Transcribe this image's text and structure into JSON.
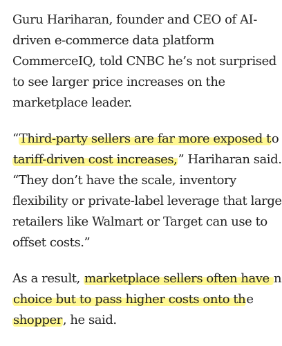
{
  "article": {
    "paragraph_1": {
      "lines": [
        "Guru Hariharan, founder and CEO of AI-",
        "driven e-commerce data platform",
        "CommerceIQ, told CNBC he’s not surprised",
        "to see larger price increases on the",
        "marketplace leader."
      ]
    },
    "paragraph_2": {
      "line_1": {
        "before": "“",
        "highlight": "Third-party sellers are far more exposed t",
        "after": "o"
      },
      "line_2": {
        "before": "",
        "highlight": "tariff-driven cost increases,",
        "after": "” Hariharan said."
      },
      "line_3": "“They don’t have the scale, inventory",
      "line_4": "flexibility or private-label leverage that large",
      "line_5": "retailers like Walmart or Target can use to",
      "line_6": "offset costs.”"
    },
    "paragraph_3": {
      "line_1": {
        "before": "As a result, ",
        "highlight": "marketplace sellers often have ",
        "after": "no"
      },
      "line_2": {
        "before": "",
        "highlight": "choice but to pass higher costs onto th",
        "after": "e"
      },
      "line_3": {
        "before": "",
        "highlight": "shopper",
        "after": ", he said."
      }
    },
    "highlight_color": "#FFF78C",
    "text_color": "#222222"
  }
}
